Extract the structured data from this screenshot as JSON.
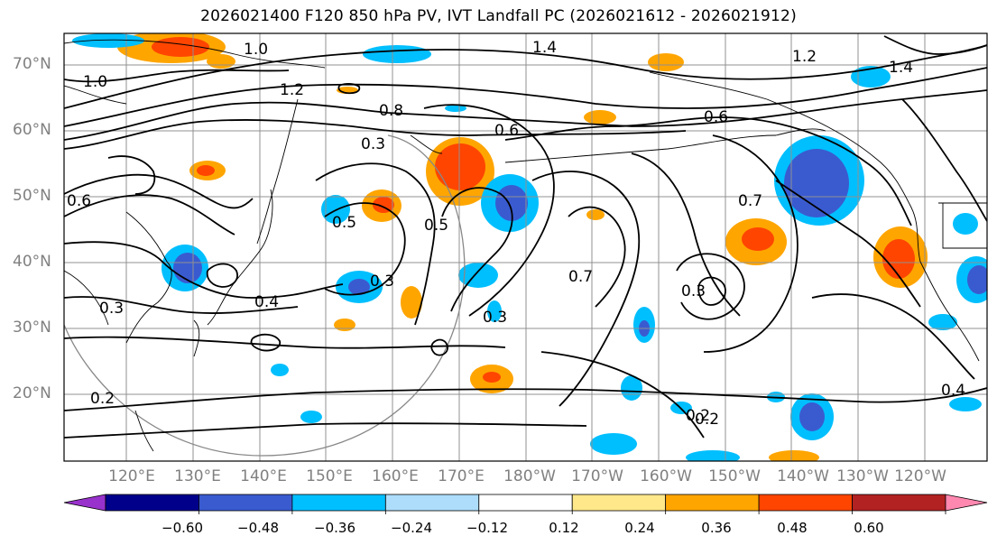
{
  "title": "2026021400 F120 850 hPa PV, IVT Landfall PC (2026021612 - 2026021912)",
  "lat_labels": [
    "70°N",
    "60°N",
    "50°N",
    "40°N",
    "30°N",
    "20°N"
  ],
  "lon_labels": [
    "120°E",
    "130°E",
    "140°E",
    "150°E",
    "160°E",
    "170°E",
    "180°W",
    "170°W",
    "160°W",
    "150°W",
    "140°W",
    "130°W",
    "120°W"
  ],
  "colorbar": {
    "tick_labels": [
      "−0.60",
      "−0.48",
      "−0.36",
      "−0.24",
      "−0.12",
      "0.12",
      "0.24",
      "0.36",
      "0.48",
      "0.60"
    ],
    "colors": [
      "#9932CC",
      "#00008B",
      "#3A5BD0",
      "#00BFFF",
      "#ADDDFA",
      "#FFFFFF",
      "#FFE88A",
      "#FFA500",
      "#FF4500",
      "#B22222",
      "#FF88B0"
    ]
  },
  "contour_labels": [
    "1.4",
    "1.0",
    "1.2",
    "0.8",
    "0.6",
    "0.5",
    "0.3",
    "0.4",
    "0.2",
    "0.7",
    "1.0",
    "1.2",
    "1.4",
    "0.6",
    "0.7",
    "0.3",
    "0.4",
    "0.2",
    "0.3",
    "0.3",
    "0.5",
    "0.6",
    "0.3",
    "0.2"
  ]
}
